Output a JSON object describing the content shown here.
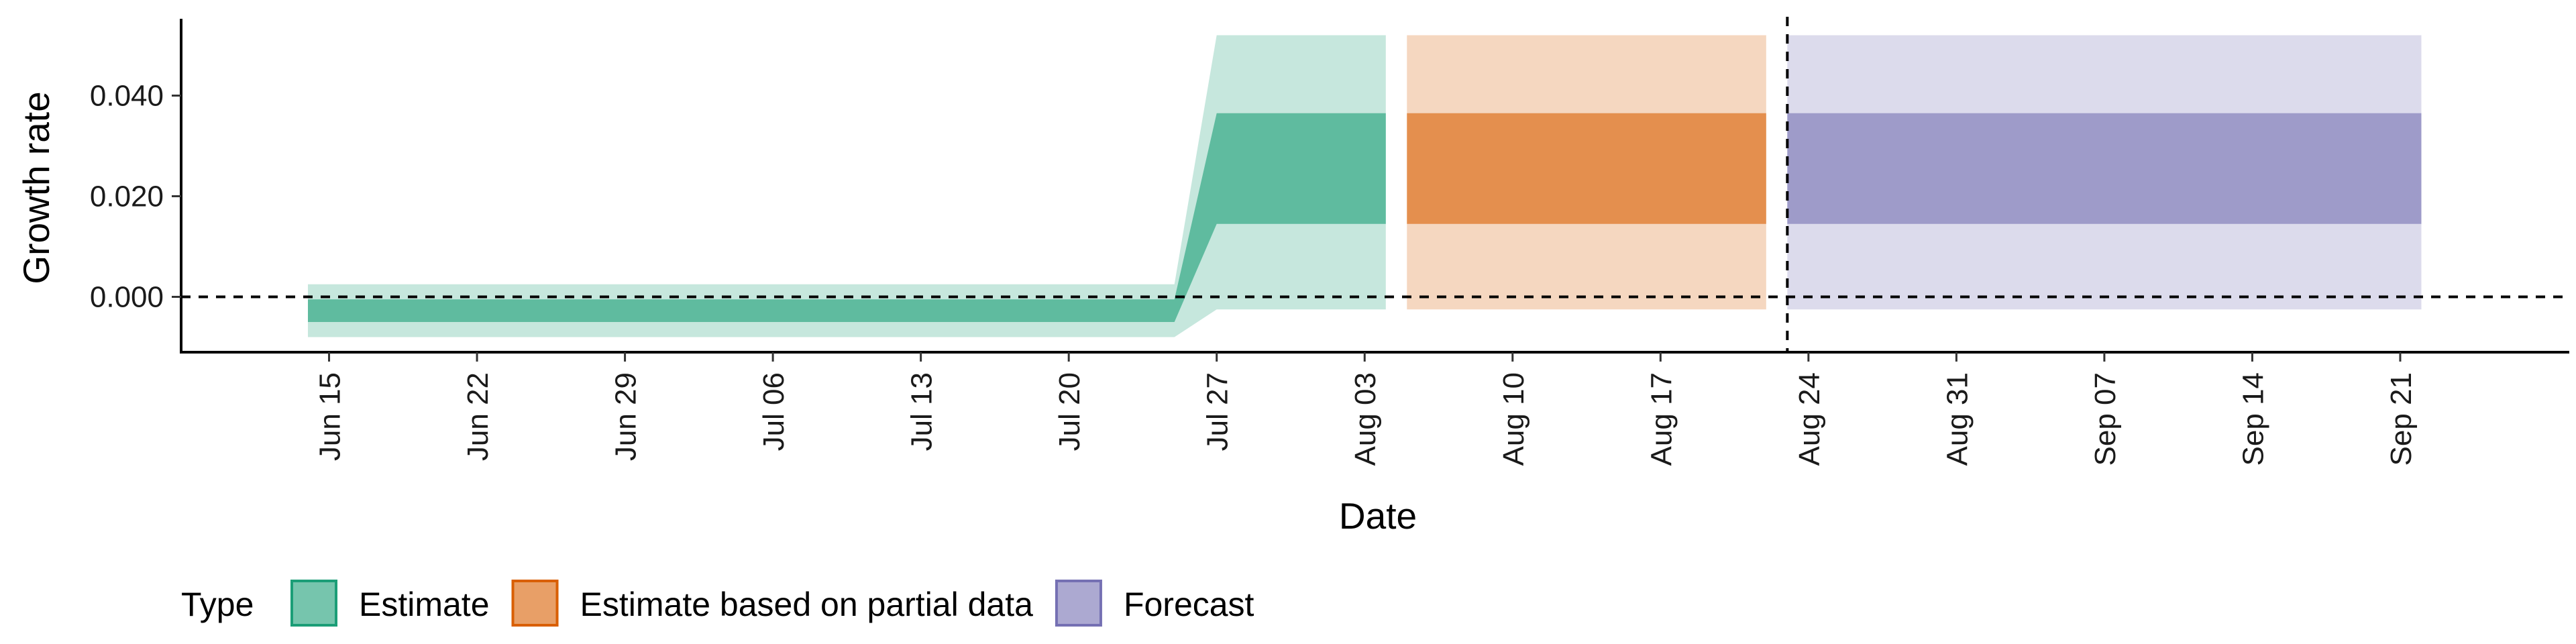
{
  "chart_data": {
    "type": "area",
    "title": "",
    "xlabel": "Date",
    "ylabel": "Growth rate",
    "ylim": [
      -0.011,
      0.055
    ],
    "xlim": [
      "2021-06-08",
      "2021-09-29"
    ],
    "y_ticks": [
      {
        "value": 0.0,
        "label": "0.000"
      },
      {
        "value": 0.02,
        "label": "0.020"
      },
      {
        "value": 0.04,
        "label": "0.040"
      }
    ],
    "x_ticks": [
      {
        "date": "2021-06-15",
        "label": "Jun 15"
      },
      {
        "date": "2021-06-22",
        "label": "Jun 22"
      },
      {
        "date": "2021-06-29",
        "label": "Jun 29"
      },
      {
        "date": "2021-07-06",
        "label": "Jul 06"
      },
      {
        "date": "2021-07-13",
        "label": "Jul 13"
      },
      {
        "date": "2021-07-20",
        "label": "Jul 20"
      },
      {
        "date": "2021-07-27",
        "label": "Jul 27"
      },
      {
        "date": "2021-08-03",
        "label": "Aug 03"
      },
      {
        "date": "2021-08-10",
        "label": "Aug 10"
      },
      {
        "date": "2021-08-17",
        "label": "Aug 17"
      },
      {
        "date": "2021-08-24",
        "label": "Aug 24"
      },
      {
        "date": "2021-08-31",
        "label": "Aug 31"
      },
      {
        "date": "2021-09-07",
        "label": "Sep 07"
      },
      {
        "date": "2021-09-14",
        "label": "Sep 14"
      },
      {
        "date": "2021-09-21",
        "label": "Sep 21"
      }
    ],
    "hline": {
      "y": 0.0,
      "style": "dashed"
    },
    "vline": {
      "date": "2021-08-23",
      "style": "dashed"
    },
    "grid": false,
    "legend": {
      "title": "Type",
      "position": "bottom"
    },
    "series": [
      {
        "name": "Estimate",
        "color": "#1b9e77",
        "points": [
          {
            "date": "2021-06-14",
            "outer_low": -0.008,
            "inner_low": -0.005,
            "inner_high": -0.0005,
            "outer_high": 0.0025
          },
          {
            "date": "2021-07-25",
            "outer_low": -0.008,
            "inner_low": -0.005,
            "inner_high": -0.0005,
            "outer_high": 0.0025
          },
          {
            "date": "2021-07-27",
            "outer_low": -0.0025,
            "inner_low": 0.0145,
            "inner_high": 0.0365,
            "outer_high": 0.052
          },
          {
            "date": "2021-08-04",
            "outer_low": -0.0025,
            "inner_low": 0.0145,
            "inner_high": 0.0365,
            "outer_high": 0.052
          }
        ]
      },
      {
        "name": "Estimate based on partial data",
        "color": "#d95f02",
        "points": [
          {
            "date": "2021-08-05",
            "outer_low": -0.0025,
            "inner_low": 0.0145,
            "inner_high": 0.0365,
            "outer_high": 0.052
          },
          {
            "date": "2021-08-22",
            "outer_low": -0.0025,
            "inner_low": 0.0145,
            "inner_high": 0.0365,
            "outer_high": 0.052
          }
        ]
      },
      {
        "name": "Forecast",
        "color": "#7570b3",
        "points": [
          {
            "date": "2021-08-23",
            "outer_low": -0.0025,
            "inner_low": 0.0145,
            "inner_high": 0.0365,
            "outer_high": 0.052
          },
          {
            "date": "2021-09-22",
            "outer_low": -0.0025,
            "inner_low": 0.0145,
            "inner_high": 0.0365,
            "outer_high": 0.052
          }
        ]
      }
    ]
  }
}
